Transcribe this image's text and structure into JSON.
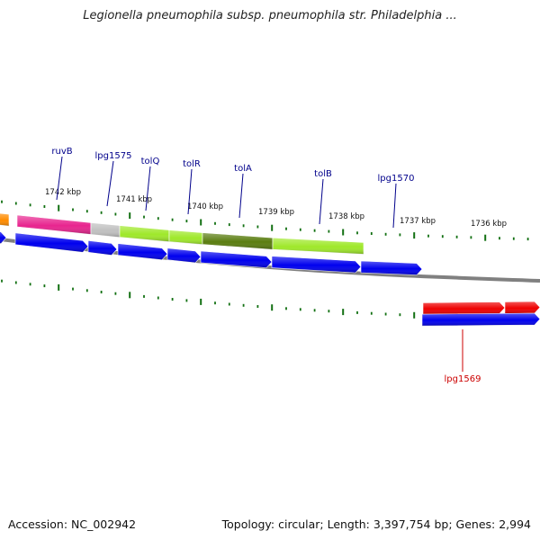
{
  "title": "Legionella pneumophila subsp. pneumophila str. Philadelphia ...",
  "footer": {
    "accession": "Accession: NC_002942",
    "summary": "Topology: circular; Length: 3,397,754 bp; Genes: 2,994"
  },
  "colors": {
    "label_blue": "#00008b",
    "label_red": "#cc0000",
    "tick_green": "#127012",
    "backbone": "#808080",
    "gene_blue": "#0000ee",
    "gene_red": "#ee0000",
    "gene_pink": "#e8258f",
    "gene_grey": "#c0c0c0",
    "gene_lime": "#9fe82a",
    "gene_olive": "#5a7d10",
    "gene_orange": "#ff8c00"
  },
  "kbp_labels": [
    "1742 kbp",
    "1741 kbp",
    "1740 kbp",
    "1739 kbp",
    "1738 kbp",
    "1737 kbp",
    "1736 kbp"
  ],
  "gene_labels": [
    {
      "name": "ruvB",
      "color": "blue"
    },
    {
      "name": "lpg1575",
      "color": "blue"
    },
    {
      "name": "tolQ",
      "color": "blue"
    },
    {
      "name": "tolR",
      "color": "blue"
    },
    {
      "name": "tolA",
      "color": "blue"
    },
    {
      "name": "tolB",
      "color": "blue"
    },
    {
      "name": "lpg1570",
      "color": "blue"
    },
    {
      "name": "lpg1569",
      "color": "red"
    }
  ],
  "features": [
    {
      "track": "outer",
      "color": "gene_orange",
      "direction": "forward"
    },
    {
      "track": "outer",
      "color": "gene_pink",
      "direction": "forward"
    },
    {
      "track": "outer",
      "color": "gene_grey",
      "direction": "forward"
    },
    {
      "track": "outer",
      "color": "gene_lime",
      "direction": "forward"
    },
    {
      "track": "outer",
      "color": "gene_lime",
      "direction": "forward"
    },
    {
      "track": "outer",
      "color": "gene_olive",
      "direction": "forward"
    },
    {
      "track": "outer",
      "color": "gene_lime",
      "direction": "forward"
    },
    {
      "track": "cds",
      "color": "gene_blue",
      "direction": "forward"
    },
    {
      "track": "cds",
      "color": "gene_blue",
      "direction": "forward"
    },
    {
      "track": "cds",
      "color": "gene_blue",
      "direction": "forward"
    },
    {
      "track": "cds",
      "color": "gene_blue",
      "direction": "forward"
    },
    {
      "track": "cds",
      "color": "gene_blue",
      "direction": "forward"
    },
    {
      "track": "cds",
      "color": "gene_blue",
      "direction": "forward"
    },
    {
      "track": "cds",
      "color": "gene_blue",
      "direction": "forward"
    },
    {
      "track": "cds",
      "color": "gene_blue",
      "direction": "forward"
    },
    {
      "track": "lower",
      "color": "gene_red",
      "direction": "forward"
    },
    {
      "track": "lower",
      "color": "gene_red",
      "direction": "forward"
    },
    {
      "track": "lower",
      "color": "gene_blue",
      "direction": "forward"
    }
  ]
}
